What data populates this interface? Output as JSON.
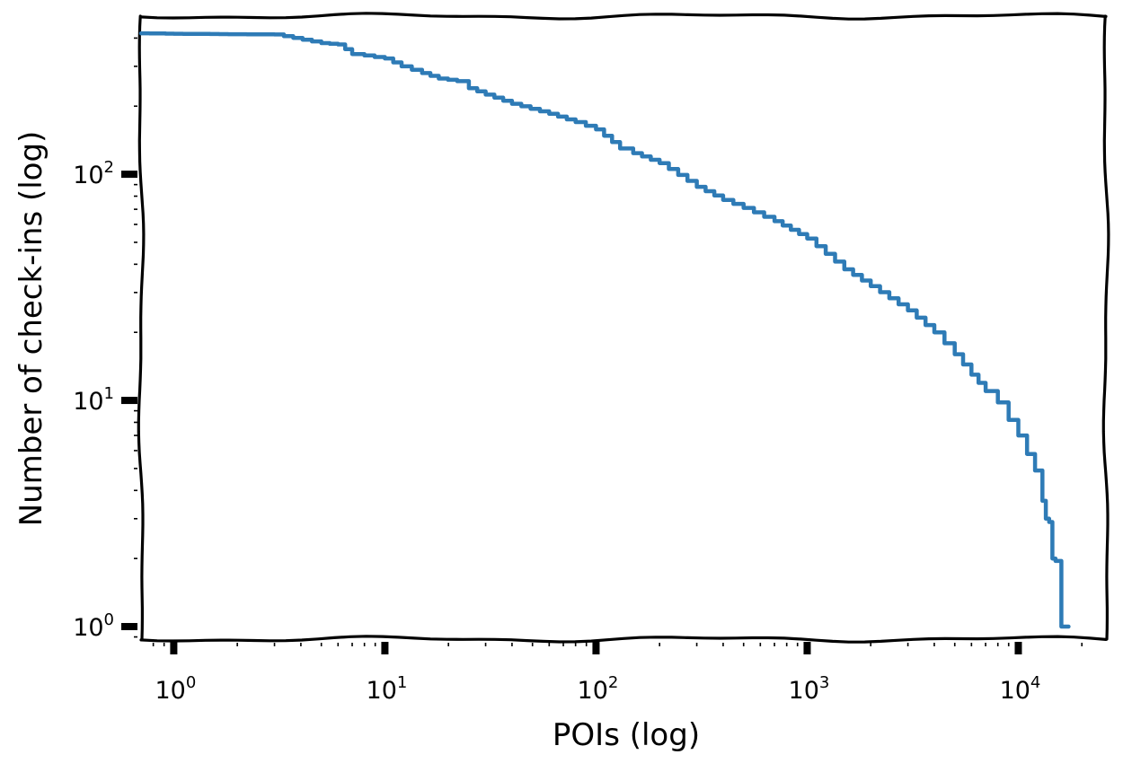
{
  "chart_data": {
    "type": "line",
    "xlabel": "POIs (log)",
    "ylabel": "Number of check-ins (log)",
    "xscale": "log",
    "yscale": "log",
    "xlim": [
      0.7,
      26000
    ],
    "ylim": [
      0.88,
      500
    ],
    "x_ticks": [
      {
        "value": 1,
        "base": "10",
        "exp": "0"
      },
      {
        "value": 10,
        "base": "10",
        "exp": "1"
      },
      {
        "value": 100,
        "base": "10",
        "exp": "2"
      },
      {
        "value": 1000,
        "base": "10",
        "exp": "3"
      },
      {
        "value": 10000,
        "base": "10",
        "exp": "4"
      }
    ],
    "y_ticks": [
      {
        "value": 1,
        "base": "10",
        "exp": "0"
      },
      {
        "value": 10,
        "base": "10",
        "exp": "1"
      },
      {
        "value": 100,
        "base": "10",
        "exp": "2"
      }
    ],
    "grid": false,
    "style": "hand-drawn",
    "series": [
      {
        "color": "#2e7bb6",
        "x": [
          0.7,
          1,
          2,
          3,
          5,
          6,
          7,
          8,
          10,
          12,
          15,
          18,
          22,
          25,
          30,
          40,
          60,
          80,
          100,
          130,
          150,
          200,
          300,
          400,
          500,
          700,
          1000,
          1500,
          2000,
          3000,
          4000,
          5000,
          6000,
          7000,
          8000,
          9000,
          10000,
          11000,
          12000,
          13000,
          13500,
          14000,
          14500,
          15000,
          16000
        ],
        "y": [
          420,
          418,
          416,
          415,
          380,
          375,
          340,
          335,
          325,
          300,
          280,
          265,
          258,
          240,
          225,
          205,
          185,
          170,
          158,
          130,
          124,
          112,
          88,
          77,
          71,
          62,
          52,
          38,
          32,
          25,
          20,
          16,
          13,
          11,
          9.8,
          8.2,
          7,
          5.8,
          4.9,
          3.6,
          3,
          2.9,
          2,
          1.95,
          1
        ]
      }
    ]
  }
}
